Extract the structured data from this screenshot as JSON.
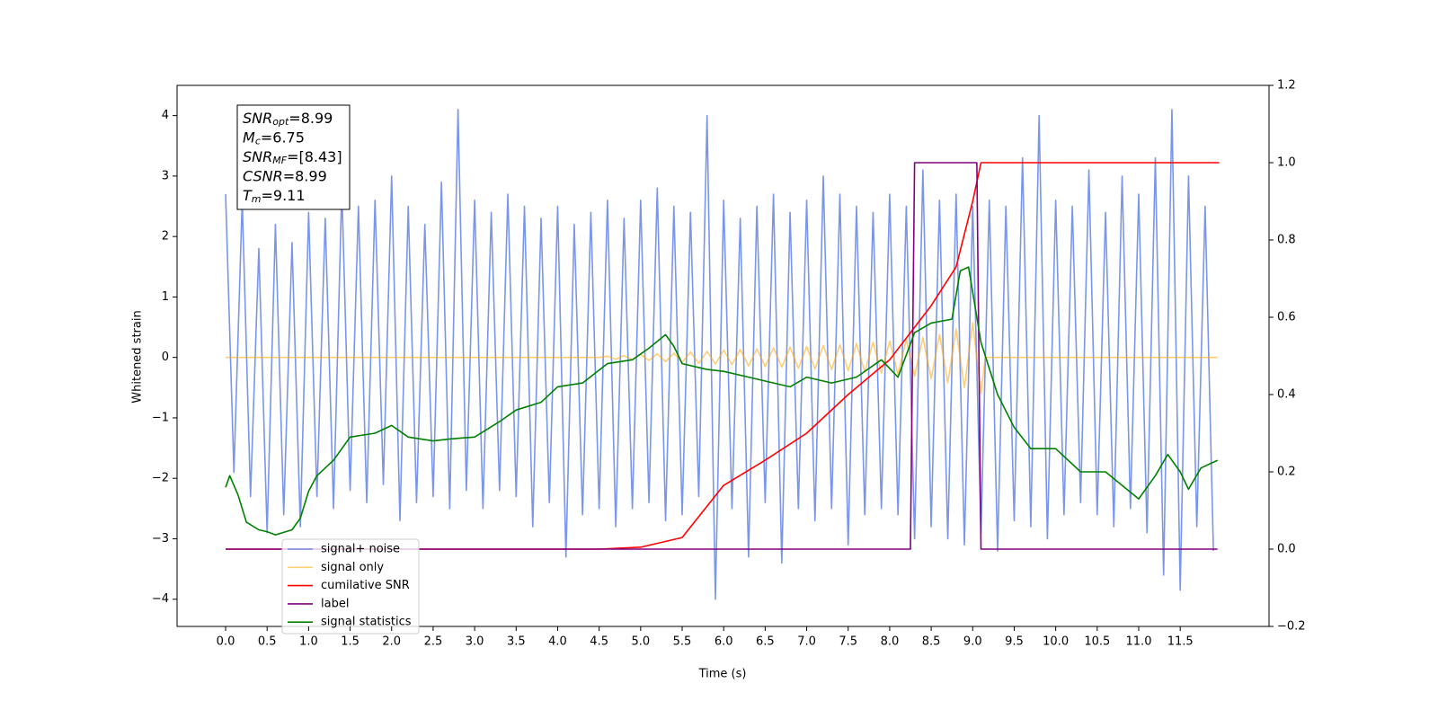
{
  "chart_data": {
    "type": "line",
    "xlabel": "Time (s)",
    "ylabel": "Whitened strain",
    "xlim": [
      -0.585,
      12.57
    ],
    "ylim": [
      -4.45,
      4.5
    ],
    "y2lim": [
      -0.2,
      1.2
    ],
    "xticks": [
      {
        "value": 0,
        "label": "0.0"
      },
      0.5,
      {
        "value": 1,
        "label": "1.0"
      },
      1.5,
      {
        "value": 2,
        "label": "2.0"
      },
      2.5,
      {
        "value": 3,
        "label": "3.0"
      },
      3.5,
      {
        "value": 4,
        "label": "4.0"
      },
      4.5,
      {
        "value": 5,
        "label": "5.0"
      },
      5.5,
      {
        "value": 6,
        "label": "6.0"
      },
      6.5,
      {
        "value": 7,
        "label": "7.0"
      },
      7.5,
      {
        "value": 8,
        "label": "8.0"
      },
      8.5,
      {
        "value": 9,
        "label": "9.0"
      },
      9.5,
      {
        "value": 10,
        "label": "10.0"
      },
      10.5,
      {
        "value": 11,
        "label": "11.0"
      },
      11.5
    ],
    "yticks": [
      {
        "value": -4,
        "label": "−4"
      },
      {
        "value": -3,
        "label": "−3"
      },
      {
        "value": -2,
        "label": "−2"
      },
      {
        "value": -1,
        "label": "−1"
      },
      0,
      1,
      2,
      3,
      4
    ],
    "y2ticks": [
      {
        "value": -0.2,
        "label": "−0.2"
      },
      {
        "value": 0,
        "label": "0.0"
      },
      0.2,
      0.4,
      0.6,
      0.8,
      {
        "value": 1,
        "label": "1.0"
      },
      1.2
    ],
    "legend": "lower left",
    "annotation": [
      {
        "main": "SNR",
        "sub": "opt",
        "rest": "=8.99"
      },
      {
        "main": "M",
        "sub": "c",
        "rest": "=6.75"
      },
      {
        "main": "SNR",
        "sub": "MF",
        "rest": "=[8.43]"
      },
      {
        "main": "CSNR",
        "sub": "",
        "rest": "=8.99"
      },
      {
        "main": "T",
        "sub": "m",
        "rest": "=9.11"
      }
    ],
    "series": [
      {
        "name": "signal+ noise",
        "color": "#4169e1",
        "opacity": 0.7,
        "axis": "y",
        "x": [
          0,
          0.1,
          0.2,
          0.3,
          0.4,
          0.5,
          0.6,
          0.7,
          0.8,
          0.9,
          1,
          1.1,
          1.2,
          1.3,
          1.4,
          1.5,
          1.6,
          1.7,
          1.8,
          1.9,
          2,
          2.1,
          2.2,
          2.3,
          2.4,
          2.5,
          2.6,
          2.7,
          2.8,
          2.9,
          3,
          3.1,
          3.2,
          3.3,
          3.4,
          3.5,
          3.6,
          3.7,
          3.8,
          3.9,
          4,
          4.1,
          4.2,
          4.3,
          4.4,
          4.5,
          4.6,
          4.7,
          4.8,
          4.9,
          5,
          5.1,
          5.2,
          5.3,
          5.4,
          5.5,
          5.6,
          5.7,
          5.8,
          5.9,
          6,
          6.1,
          6.2,
          6.3,
          6.4,
          6.5,
          6.6,
          6.7,
          6.8,
          6.9,
          7,
          7.1,
          7.2,
          7.3,
          7.4,
          7.5,
          7.6,
          7.7,
          7.8,
          7.9,
          8,
          8.1,
          8.2,
          8.3,
          8.4,
          8.5,
          8.6,
          8.7,
          8.8,
          8.9,
          9,
          9.1,
          9.2,
          9.3,
          9.4,
          9.5,
          9.6,
          9.7,
          9.8,
          9.9,
          10,
          10.1,
          10.2,
          10.3,
          10.4,
          10.5,
          10.6,
          10.7,
          10.8,
          10.9,
          11,
          11.1,
          11.2,
          11.3,
          11.4,
          11.5,
          11.6,
          11.7,
          11.8,
          11.9
        ],
        "values": [
          2.7,
          -1.9,
          2.6,
          -2.3,
          1.8,
          -2.9,
          2.2,
          -2.6,
          1.9,
          -2.8,
          2.4,
          -2.3,
          2.3,
          -2.5,
          2.8,
          -2.2,
          2.5,
          -2.4,
          2.6,
          -2.1,
          3.0,
          -2.7,
          2.5,
          -2.4,
          2.2,
          -2.3,
          2.9,
          -2.5,
          4.1,
          -2.2,
          2.6,
          -2.5,
          2.4,
          -2.2,
          2.7,
          -2.3,
          2.5,
          -2.8,
          2.3,
          -2.4,
          2.5,
          -3.3,
          2.2,
          -2.6,
          2.4,
          -2.5,
          2.6,
          -2.8,
          2.3,
          -2.5,
          2.6,
          -2.4,
          2.8,
          -2.7,
          2.5,
          -2.6,
          2.4,
          -2.3,
          4.0,
          -4.0,
          2.6,
          -2.5,
          2.3,
          -3.3,
          2.5,
          -2.4,
          2.7,
          -3.4,
          2.4,
          -2.5,
          2.6,
          -2.7,
          3.0,
          -2.5,
          2.7,
          -3.1,
          2.5,
          -2.6,
          2.4,
          -2.5,
          2.7,
          -2.6,
          2.5,
          -3.0,
          3.1,
          -2.8,
          2.6,
          -3.0,
          2.7,
          -3.1,
          2.5,
          -2.9,
          2.6,
          -3.2,
          2.5,
          -2.7,
          3.3,
          -2.8,
          4.0,
          -3.0,
          2.6,
          -2.6,
          2.5,
          -2.4,
          3.1,
          -2.6,
          2.4,
          -2.8,
          3.0,
          -2.5,
          2.7,
          -2.9,
          3.3,
          -3.6,
          4.1,
          -3.85,
          3.0,
          -2.8,
          2.5,
          -3.2
        ]
      },
      {
        "name": "signal only",
        "color": "#ffa500",
        "opacity": 0.55,
        "axis": "y",
        "x": [
          0,
          4.5,
          4.6,
          4.7,
          4.8,
          4.9,
          5,
          5.1,
          5.2,
          5.3,
          5.4,
          5.5,
          5.6,
          5.7,
          5.8,
          5.9,
          6,
          6.1,
          6.2,
          6.3,
          6.4,
          6.5,
          6.6,
          6.7,
          6.8,
          6.9,
          7,
          7.1,
          7.2,
          7.3,
          7.4,
          7.5,
          7.6,
          7.7,
          7.8,
          7.9,
          8,
          8.1,
          8.2,
          8.3,
          8.4,
          8.5,
          8.6,
          8.7,
          8.8,
          8.9,
          9,
          9.1,
          9.15,
          11.95
        ],
        "values": [
          0,
          0,
          0.02,
          -0.03,
          0.03,
          -0.04,
          0.05,
          -0.05,
          0.06,
          -0.07,
          0.07,
          -0.08,
          0.09,
          -0.1,
          0.1,
          -0.11,
          0.12,
          -0.12,
          0.13,
          -0.14,
          0.14,
          -0.15,
          0.16,
          -0.16,
          0.17,
          -0.18,
          0.18,
          -0.19,
          0.2,
          -0.2,
          0.21,
          -0.22,
          0.23,
          -0.24,
          0.25,
          -0.26,
          0.27,
          -0.28,
          0.29,
          -0.31,
          0.33,
          -0.35,
          0.38,
          -0.42,
          0.47,
          -0.5,
          0.57,
          -0.6,
          0,
          0
        ]
      },
      {
        "name": "cumilative SNR",
        "color": "#ff0000",
        "axis": "y2",
        "x": [
          0,
          4.5,
          5,
          5.5,
          6,
          6.5,
          7,
          7.5,
          8,
          8.5,
          8.8,
          9,
          9.1,
          11.97
        ],
        "values": [
          0,
          0,
          0.005,
          0.03,
          0.165,
          0.23,
          0.3,
          0.4,
          0.49,
          0.63,
          0.73,
          0.9,
          1,
          1
        ]
      },
      {
        "name": "label",
        "color": "#800080",
        "axis": "y2",
        "x": [
          0,
          8.25,
          8.3,
          9.05,
          9.1,
          11.95
        ],
        "values": [
          0,
          0,
          1,
          1,
          0,
          0
        ]
      },
      {
        "name": "signal statistics",
        "color": "#008000",
        "axis": "y2",
        "x": [
          0,
          0.05,
          0.15,
          0.25,
          0.4,
          0.5,
          0.6,
          0.8,
          0.9,
          1,
          1.1,
          1.3,
          1.5,
          1.8,
          2,
          2.2,
          2.5,
          2.7,
          3,
          3.3,
          3.5,
          3.8,
          4,
          4.3,
          4.6,
          4.9,
          5.1,
          5.3,
          5.4,
          5.5,
          5.8,
          6,
          6.3,
          6.6,
          6.8,
          7,
          7.3,
          7.6,
          7.9,
          8.1,
          8.3,
          8.5,
          8.75,
          8.85,
          8.95,
          9.1,
          9.3,
          9.5,
          9.7,
          10,
          10.3,
          10.6,
          11,
          11.2,
          11.35,
          11.5,
          11.6,
          11.75,
          11.95
        ],
        "values": [
          0.16,
          0.19,
          0.14,
          0.07,
          0.05,
          0.045,
          0.037,
          0.05,
          0.08,
          0.15,
          0.19,
          0.23,
          0.29,
          0.3,
          0.32,
          0.29,
          0.28,
          0.285,
          0.29,
          0.33,
          0.36,
          0.38,
          0.42,
          0.43,
          0.48,
          0.49,
          0.52,
          0.555,
          0.525,
          0.48,
          0.465,
          0.46,
          0.445,
          0.43,
          0.42,
          0.445,
          0.43,
          0.445,
          0.49,
          0.445,
          0.56,
          0.585,
          0.595,
          0.72,
          0.73,
          0.535,
          0.4,
          0.315,
          0.26,
          0.26,
          0.2,
          0.2,
          0.13,
          0.19,
          0.245,
          0.2,
          0.155,
          0.21,
          0.23
        ]
      }
    ]
  }
}
